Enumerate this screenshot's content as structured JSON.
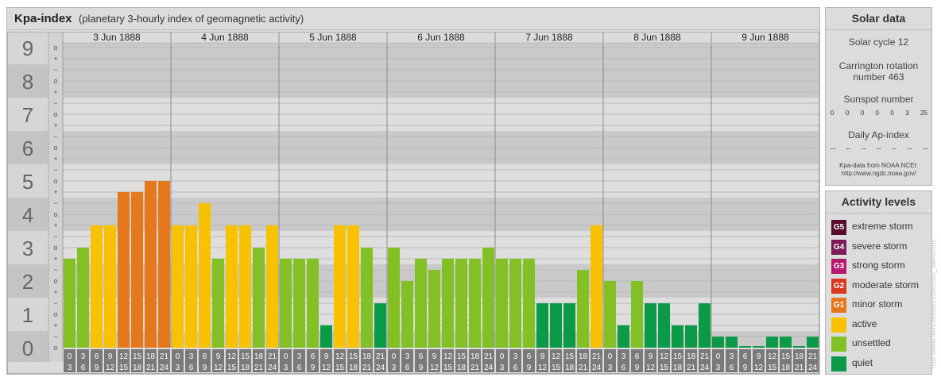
{
  "header": {
    "title": "Kpa-index",
    "subtitle": "(planetary 3-hourly index of geomagnetic activity)"
  },
  "solar": {
    "title": "Solar data",
    "cycle": "Solar cycle 12",
    "carrington_line1": "Carrington rotation",
    "carrington_line2": "number 463",
    "sunspot_label": "Sunspot number",
    "sunspot_values": [
      "0",
      "0",
      "0",
      "0",
      "0",
      "3",
      "25"
    ],
    "ap_label": "Daily Ap-index",
    "ap_values": [
      "--",
      "--",
      "--",
      "--",
      "--",
      "--",
      "--"
    ],
    "source_line1": "Kpa-data from NOAA NCEI:",
    "source_line2": "http://www.ngdc.noaa.gov/"
  },
  "activity": {
    "title": "Activity levels",
    "levels": [
      {
        "badge": "G5",
        "label": "extreme storm",
        "color": "#5a0a2c"
      },
      {
        "badge": "G4",
        "label": "severe storm",
        "color": "#7d1a5a"
      },
      {
        "badge": "G3",
        "label": "strong storm",
        "color": "#b5186e"
      },
      {
        "badge": "G2",
        "label": "moderate storm",
        "color": "#d93a1e"
      },
      {
        "badge": "G1",
        "label": "minor storm",
        "color": "#e5781c"
      },
      {
        "badge": "",
        "label": "active",
        "color": "#f8c200"
      },
      {
        "badge": "",
        "label": "unsettled",
        "color": "#82c026"
      },
      {
        "badge": "",
        "label": "quiet",
        "color": "#0a9a48"
      }
    ]
  },
  "credit": "http://www.tesis.lebedev.ru/en/sun_flares.html",
  "chart_data": {
    "type": "bar",
    "title": "Kpa-index",
    "subtitle": "(planetary 3-hourly index of geomagnetic activity)",
    "ylim": [
      0,
      9
    ],
    "y_ticks": [
      "0",
      "1",
      "2",
      "3",
      "4",
      "5",
      "6",
      "7",
      "8",
      "9"
    ],
    "minor_ticks": [
      "+",
      "o",
      "−"
    ],
    "days": [
      "3 Jun 1888",
      "4 Jun 1888",
      "5 Jun 1888",
      "6 Jun 1888",
      "7 Jun 1888",
      "8 Jun 1888",
      "9 Jun 1888"
    ],
    "hour_start_labels": [
      "0",
      "3",
      "6",
      "9",
      "12",
      "15",
      "18",
      "21"
    ],
    "hour_end_labels": [
      "3",
      "6",
      "9",
      "12",
      "15",
      "18",
      "21",
      "24"
    ],
    "values": [
      [
        2.67,
        3.0,
        3.67,
        3.67,
        4.67,
        4.67,
        5.0,
        5.0
      ],
      [
        3.67,
        3.67,
        4.33,
        2.67,
        3.67,
        3.67,
        3.0,
        3.67
      ],
      [
        2.67,
        2.67,
        2.67,
        0.67,
        3.67,
        3.67,
        3.0,
        1.33
      ],
      [
        3.0,
        2.0,
        2.67,
        2.33,
        2.67,
        2.67,
        2.67,
        3.0
      ],
      [
        2.67,
        2.67,
        2.67,
        1.33,
        1.33,
        1.33,
        2.33,
        3.67
      ],
      [
        2.0,
        0.67,
        2.0,
        1.33,
        1.33,
        0.67,
        0.67,
        1.33
      ],
      [
        0.33,
        0.33,
        0.0,
        0.0,
        0.33,
        0.33,
        0.0,
        0.33
      ]
    ],
    "level_colors": {
      "quiet": "#0a9a48",
      "unsettled": "#82c026",
      "active": "#f8c200",
      "G1": "#e5781c"
    }
  }
}
